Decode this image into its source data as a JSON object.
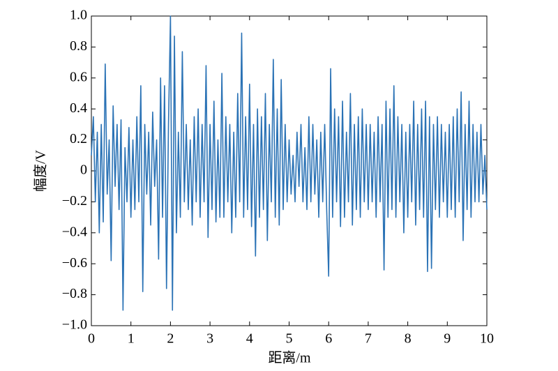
{
  "chart_data": {
    "type": "line",
    "xlabel": "距离/m",
    "ylabel": "幅度/V",
    "xlim": [
      0,
      10
    ],
    "ylim": [
      -1,
      1
    ],
    "xticks": [
      0,
      1,
      2,
      3,
      4,
      5,
      6,
      7,
      8,
      9,
      10
    ],
    "yticks": [
      {
        "value": -1,
        "label": "−1.0"
      },
      {
        "value": -0.8,
        "label": "−0.8"
      },
      {
        "value": -0.6,
        "label": "−0.6"
      },
      {
        "value": -0.4,
        "label": "−0.4"
      },
      {
        "value": -0.2,
        "label": "−0.2"
      },
      0,
      0.2,
      0.4,
      0.6,
      0.8,
      {
        "value": 1,
        "label": "1.0"
      }
    ],
    "x": [
      0,
      0.05,
      0.1,
      0.15,
      0.2,
      0.25,
      0.3,
      0.35,
      0.4,
      0.45,
      0.5,
      0.55,
      0.6,
      0.65,
      0.7,
      0.75,
      0.8,
      0.85,
      0.9,
      0.95,
      1,
      1.05,
      1.1,
      1.15,
      1.2,
      1.25,
      1.3,
      1.35,
      1.4,
      1.45,
      1.5,
      1.55,
      1.6,
      1.65,
      1.7,
      1.75,
      1.8,
      1.85,
      1.9,
      1.95,
      2,
      2.05,
      2.1,
      2.15,
      2.2,
      2.25,
      2.3,
      2.35,
      2.4,
      2.45,
      2.5,
      2.55,
      2.6,
      2.65,
      2.7,
      2.75,
      2.8,
      2.85,
      2.9,
      2.95,
      3,
      3.05,
      3.1,
      3.15,
      3.2,
      3.25,
      3.3,
      3.35,
      3.4,
      3.45,
      3.5,
      3.55,
      3.6,
      3.65,
      3.7,
      3.75,
      3.8,
      3.85,
      3.9,
      3.95,
      4,
      4.05,
      4.1,
      4.15,
      4.2,
      4.25,
      4.3,
      4.35,
      4.4,
      4.45,
      4.5,
      4.55,
      4.6,
      4.65,
      4.7,
      4.75,
      4.8,
      4.85,
      4.9,
      4.95,
      5,
      5.05,
      5.1,
      5.15,
      5.2,
      5.25,
      5.3,
      5.35,
      5.4,
      5.45,
      5.5,
      5.55,
      5.6,
      5.65,
      5.7,
      5.75,
      5.8,
      5.85,
      5.9,
      5.95,
      6,
      6.05,
      6.1,
      6.15,
      6.2,
      6.25,
      6.3,
      6.35,
      6.4,
      6.45,
      6.5,
      6.55,
      6.6,
      6.65,
      6.7,
      6.75,
      6.8,
      6.85,
      6.9,
      6.95,
      7,
      7.05,
      7.1,
      7.15,
      7.2,
      7.25,
      7.3,
      7.35,
      7.4,
      7.45,
      7.5,
      7.55,
      7.6,
      7.65,
      7.7,
      7.75,
      7.8,
      7.85,
      7.9,
      7.95,
      8,
      8.05,
      8.1,
      8.15,
      8.2,
      8.25,
      8.3,
      8.35,
      8.4,
      8.45,
      8.5,
      8.55,
      8.6,
      8.65,
      8.7,
      8.75,
      8.8,
      8.85,
      8.9,
      8.95,
      9,
      9.05,
      9.1,
      9.15,
      9.2,
      9.25,
      9.3,
      9.35,
      9.4,
      9.45,
      9.5,
      9.55,
      9.6,
      9.65,
      9.7,
      9.75,
      9.8,
      9.85,
      9.9,
      9.95,
      10
    ],
    "series": [
      {
        "color": "#2a72b5",
        "values": [
          0.1,
          0.35,
          -0.2,
          0.25,
          -0.4,
          0.3,
          -0.33,
          0.69,
          -0.15,
          0.2,
          -0.58,
          0.42,
          -0.1,
          0.3,
          -0.25,
          0.33,
          -0.9,
          0.15,
          -0.2,
          0.28,
          -0.3,
          0.2,
          -0.25,
          0.35,
          -0.2,
          0.55,
          -0.78,
          0.3,
          -0.15,
          0.25,
          -0.35,
          0.38,
          -0.1,
          0.2,
          -0.57,
          0.6,
          -0.3,
          0.55,
          -0.76,
          0.3,
          1.0,
          -0.9,
          0.87,
          -0.4,
          0.25,
          -0.3,
          0.77,
          -0.2,
          0.3,
          -0.25,
          0.2,
          -0.35,
          0.35,
          -0.2,
          0.4,
          -0.3,
          0.3,
          -0.2,
          0.68,
          -0.43,
          0.3,
          -0.25,
          0.45,
          -0.33,
          0.2,
          -0.3,
          0.63,
          -0.3,
          0.35,
          -0.2,
          0.3,
          -0.4,
          0.25,
          -0.3,
          0.5,
          -0.2,
          0.89,
          -0.3,
          0.35,
          -0.25,
          0.56,
          -0.36,
          0.3,
          -0.55,
          0.4,
          -0.3,
          0.35,
          -0.25,
          0.5,
          -0.45,
          0.3,
          -0.2,
          0.72,
          -0.3,
          0.4,
          -0.35,
          0.59,
          -0.25,
          0.3,
          -0.2,
          0.2,
          -0.15,
          0.1,
          -0.2,
          0.25,
          -0.1,
          0.3,
          -0.2,
          0.15,
          -0.25,
          0.35,
          -0.2,
          0.3,
          -0.15,
          0.2,
          -0.3,
          0.25,
          -0.2,
          0.3,
          -0.25,
          -0.68,
          0.66,
          -0.3,
          0.4,
          -0.2,
          0.35,
          -0.36,
          0.45,
          -0.3,
          0.25,
          -0.2,
          0.5,
          -0.35,
          0.3,
          -0.25,
          0.35,
          -0.3,
          0.4,
          -0.2,
          0.3,
          -0.25,
          0.3,
          -0.2,
          0.25,
          -0.3,
          0.35,
          -0.2,
          0.3,
          -0.64,
          0.45,
          -0.3,
          0.4,
          -0.25,
          0.55,
          -0.3,
          0.35,
          -0.2,
          0.3,
          -0.4,
          0.25,
          -0.3,
          0.3,
          -0.2,
          0.45,
          -0.35,
          0.3,
          -0.25,
          0.4,
          -0.3,
          0.45,
          -0.65,
          0.35,
          -0.63,
          0.3,
          -0.25,
          0.35,
          -0.3,
          0.3,
          -0.2,
          0.25,
          -0.3,
          0.3,
          -0.25,
          0.35,
          -0.3,
          0.4,
          -0.2,
          0.51,
          -0.45,
          0.3,
          -0.25,
          0.45,
          -0.3,
          0.3,
          -0.2,
          0.25,
          -0.2,
          0.3,
          -0.15,
          0.1,
          -0.25
        ]
      }
    ]
  }
}
